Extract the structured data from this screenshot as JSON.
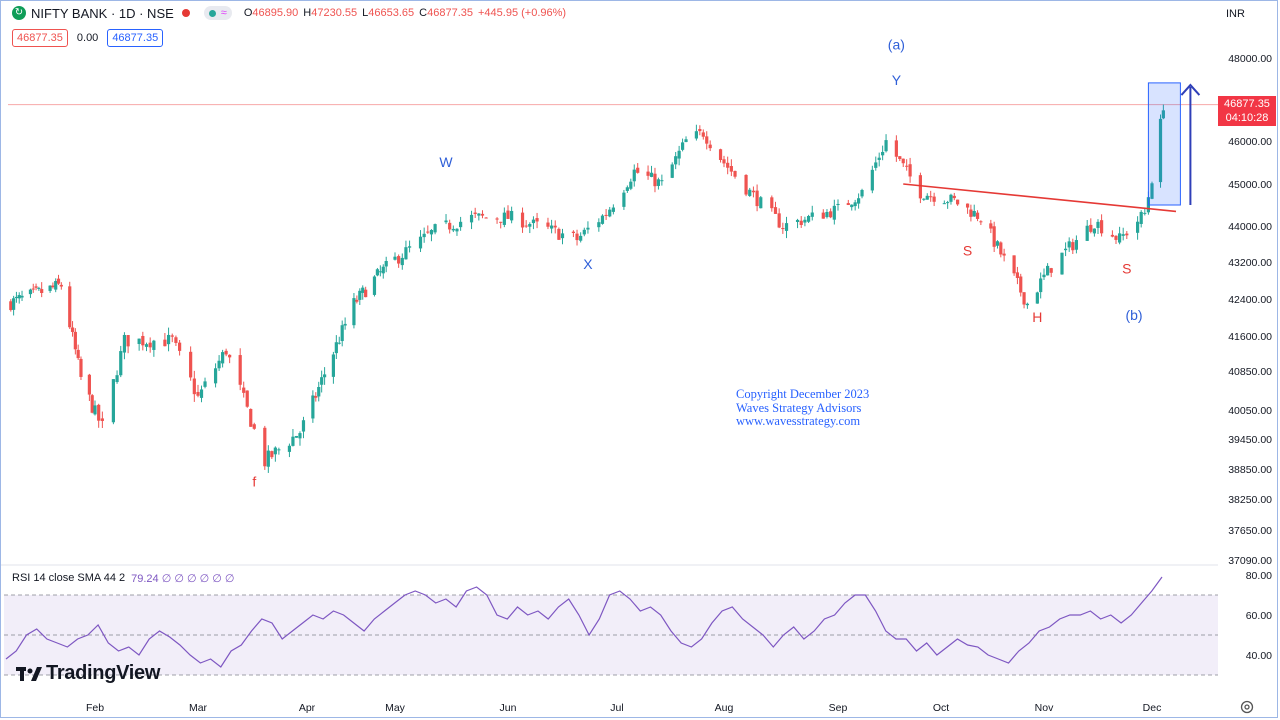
{
  "legend": {
    "symbol_icon": "circle-arrow-icon",
    "title": "NIFTY BANK · 1D · NSE",
    "ohlc": [
      {
        "k": "O",
        "v": "46895.90"
      },
      {
        "k": "H",
        "v": "47230.55"
      },
      {
        "k": "L",
        "v": "46653.65"
      },
      {
        "k": "C",
        "v": "46877.35"
      },
      {
        "k": "",
        "v": "+445.95 (+0.96%)"
      }
    ],
    "sell_price": "46877.35",
    "spread": "0.00",
    "buy_price": "46877.35"
  },
  "currency": "INR",
  "last_price": "46877.35",
  "countdown": "04:10:28",
  "rsi_label": "RSI 14 close SMA 44 2",
  "rsi_value": "79.24 ∅ ∅ ∅ ∅ ∅ ∅",
  "logo_text": "TradingView",
  "copyright": [
    "Copyright December 2023",
    "Waves Strategy Advisors",
    "www.wavesstrategy.com"
  ],
  "colors": {
    "up": "#26a69a",
    "down": "#ef5350",
    "annot_blue": "#2962ff",
    "annot_red": "#e53935",
    "rsi": "#7e57c2"
  },
  "chart_data": [
    {
      "type": "candlestick",
      "y_axis_ticks": [
        "48000.00",
        "46000.00",
        "45000.00",
        "44000.00",
        "43200.00",
        "42400.00",
        "41600.00",
        "40850.00",
        "40050.00",
        "39450.00",
        "38850.00",
        "38250.00",
        "37650.00",
        "37090.00"
      ],
      "x_axis_ticks": [
        "Feb",
        "Mar",
        "Apr",
        "May",
        "Jun",
        "Jul",
        "Aug",
        "Sep",
        "Oct",
        "Nov",
        "Dec"
      ],
      "ylim": [
        37090,
        48700
      ],
      "waypoints": [
        {
          "date": "2023-01-01",
          "price": 42300
        },
        {
          "date": "2023-01-20",
          "price": 42700
        },
        {
          "date": "2023-01-27",
          "price": 40700
        },
        {
          "date": "2023-02-03",
          "price": 39700
        },
        {
          "date": "2023-02-09",
          "price": 41500
        },
        {
          "date": "2023-02-22",
          "price": 41500
        },
        {
          "date": "2023-03-01",
          "price": 40300
        },
        {
          "date": "2023-03-09",
          "price": 41300
        },
        {
          "date": "2023-03-20",
          "price": 39000
        },
        {
          "date": "2023-03-30",
          "price": 39600
        },
        {
          "date": "2023-04-17",
          "price": 42300
        },
        {
          "date": "2023-04-25",
          "price": 42900
        },
        {
          "date": "2023-05-12",
          "price": 43900
        },
        {
          "date": "2023-05-22",
          "price": 44200
        },
        {
          "date": "2023-06-02",
          "price": 44200
        },
        {
          "date": "2023-06-20",
          "price": 43700
        },
        {
          "date": "2023-06-28",
          "price": 44300
        },
        {
          "date": "2023-07-06",
          "price": 45300
        },
        {
          "date": "2023-07-14",
          "price": 45000
        },
        {
          "date": "2023-07-21",
          "price": 46000
        },
        {
          "date": "2023-07-26",
          "price": 46200
        },
        {
          "date": "2023-08-01",
          "price": 45500
        },
        {
          "date": "2023-08-07",
          "price": 44900
        },
        {
          "date": "2023-08-17",
          "price": 44000
        },
        {
          "date": "2023-09-01",
          "price": 44400
        },
        {
          "date": "2023-09-08",
          "price": 44800
        },
        {
          "date": "2023-09-15",
          "price": 46000
        },
        {
          "date": "2023-09-20",
          "price": 45400
        },
        {
          "date": "2023-09-25",
          "price": 44800
        },
        {
          "date": "2023-10-05",
          "price": 44600
        },
        {
          "date": "2023-10-13",
          "price": 44200
        },
        {
          "date": "2023-10-27",
          "price": 42300
        },
        {
          "date": "2023-11-03",
          "price": 43100
        },
        {
          "date": "2023-11-15",
          "price": 44100
        },
        {
          "date": "2023-11-22",
          "price": 43700
        },
        {
          "date": "2023-11-29",
          "price": 44300
        },
        {
          "date": "2023-12-04",
          "price": 46400
        },
        {
          "date": "2023-12-05",
          "price": 46877
        }
      ],
      "trendline": {
        "start": {
          "date": "2023-09-20",
          "price": 45000
        },
        "end": {
          "date": "2023-12-01",
          "price": 44300
        }
      },
      "wave_labels": [
        {
          "text": "(a)",
          "date": "2023-09-18",
          "price": 48200,
          "color": "blue"
        },
        {
          "text": "Y",
          "date": "2023-09-18",
          "price": 47350,
          "color": "blue"
        },
        {
          "text": "W",
          "date": "2023-05-15",
          "price": 45400,
          "color": "blue"
        },
        {
          "text": "X",
          "date": "2023-06-23",
          "price": 43050,
          "color": "blue"
        },
        {
          "text": "f",
          "date": "2023-03-17",
          "price": 38500,
          "color": "red"
        },
        {
          "text": "S",
          "date": "2023-10-09",
          "price": 43350,
          "color": "red"
        },
        {
          "text": "H",
          "date": "2023-10-30",
          "price": 41900,
          "color": "red"
        },
        {
          "text": "S",
          "date": "2023-11-24",
          "price": 42950,
          "color": "red"
        },
        {
          "text": "(b)",
          "date": "2023-11-26",
          "price": 41950,
          "color": "blue"
        }
      ]
    },
    {
      "type": "line",
      "title": "RSI 14 close SMA 44 2",
      "y_axis_ticks": [
        "80.00",
        "60.00",
        "40.00"
      ],
      "ylim": [
        25,
        85
      ],
      "bands": [
        70,
        50,
        30
      ],
      "values": [
        38,
        42,
        50,
        53,
        48,
        46,
        44,
        48,
        50,
        55,
        46,
        42,
        44,
        40,
        48,
        52,
        49,
        45,
        40,
        36,
        38,
        34,
        42,
        45,
        52,
        58,
        56,
        48,
        52,
        56,
        60,
        58,
        62,
        60,
        56,
        52,
        58,
        62,
        66,
        70,
        72,
        70,
        66,
        68,
        64,
        72,
        74,
        70,
        60,
        58,
        64,
        60,
        62,
        58,
        64,
        68,
        60,
        50,
        58,
        70,
        72,
        68,
        62,
        64,
        60,
        52,
        46,
        44,
        48,
        56,
        62,
        64,
        58,
        54,
        50,
        44,
        50,
        54,
        48,
        52,
        58,
        60,
        66,
        70,
        70,
        62,
        52,
        48,
        48,
        42,
        46,
        40,
        44,
        48,
        45,
        44,
        40,
        38,
        36,
        42,
        46,
        52,
        54,
        58,
        60,
        60,
        62,
        58,
        60,
        56,
        60,
        66,
        72,
        79
      ]
    }
  ]
}
